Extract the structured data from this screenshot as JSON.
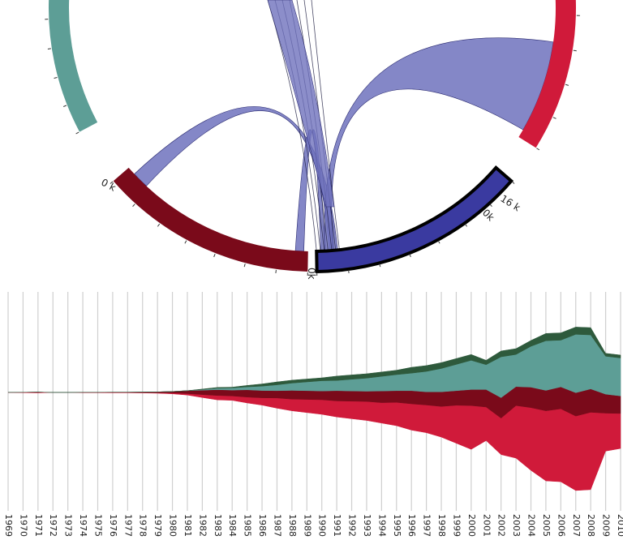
{
  "colors": {
    "teal": "#5d9e96",
    "dark_green": "#2e5a3c",
    "maroon": "#7a0a1a",
    "crimson": "#d01a3a",
    "navy": "#3a3aa0",
    "ribbon": "#6f72bd",
    "year_line": "#cfcfcf"
  },
  "chart_data": [
    {
      "type": "chord",
      "arc_labels": [
        {
          "text": "0 k",
          "arc": "teal"
        },
        {
          "text": "0k",
          "arc": "maroon"
        },
        {
          "text": "0k",
          "arc": "navy"
        },
        {
          "text": "16 k",
          "arc": "crimson"
        }
      ],
      "arcs": [
        {
          "color": "teal"
        },
        {
          "color": "maroon"
        },
        {
          "color": "navy",
          "highlighted": true
        },
        {
          "color": "crimson"
        }
      ]
    },
    {
      "type": "area",
      "x": [
        1969,
        1970,
        1971,
        1972,
        1973,
        1974,
        1975,
        1976,
        1977,
        1978,
        1979,
        1980,
        1981,
        1982,
        1983,
        1984,
        1985,
        1986,
        1987,
        1988,
        1989,
        1990,
        1991,
        1992,
        1993,
        1994,
        1995,
        1996,
        1997,
        1998,
        1999,
        2000,
        2001,
        2002,
        2003,
        2004,
        2005,
        2006,
        2007,
        2008,
        2009,
        2010
      ],
      "x_tick_labels": [
        "1969",
        "1970",
        "1971",
        "1972",
        "1973",
        "1974",
        "1975",
        "1976",
        "1977",
        "1978",
        "1979",
        "1980",
        "1981",
        "1982",
        "1983",
        "1984",
        "1985",
        "1986",
        "1987",
        "1988",
        "1989",
        "1990",
        "1991",
        "1992",
        "1993",
        "1994",
        "1995",
        "1996",
        "1997",
        "1998",
        "1999",
        "2000",
        "2001",
        "2002",
        "2003",
        "2004",
        "2005",
        "2006",
        "2007",
        "2008",
        "2009",
        "2010"
      ],
      "series": [
        {
          "color": "crimson",
          "values": [
            0.2,
            0.3,
            0.5,
            0.1,
            0.1,
            0.2,
            0.2,
            0.3,
            0.3,
            0.4,
            0.5,
            0.6,
            1,
            2,
            3,
            3,
            4,
            5,
            7,
            8,
            9,
            10,
            11,
            12,
            13,
            14,
            16,
            18,
            19,
            21,
            26,
            30,
            23,
            25,
            36,
            43,
            48,
            50,
            51,
            53,
            26,
            24
          ]
        },
        {
          "color": "maroon",
          "values": [
            0,
            0,
            0,
            0,
            0,
            0.1,
            0.1,
            0.1,
            0.1,
            0.2,
            0.4,
            1,
            2,
            3,
            4,
            4,
            5,
            5,
            5,
            6,
            6,
            6,
            7,
            7,
            7,
            8,
            8,
            9,
            9,
            10,
            10,
            11,
            12,
            14,
            13,
            14,
            14,
            15,
            16,
            16,
            13,
            12
          ]
        },
        {
          "color": "teal",
          "values": [
            0,
            0,
            0,
            0,
            0,
            0,
            0,
            0,
            0,
            0,
            0,
            0,
            0,
            0.5,
            1,
            1.5,
            2,
            3,
            4,
            5,
            6,
            7,
            7,
            8,
            9,
            10,
            11,
            12,
            14,
            16,
            18,
            20,
            17,
            28,
            22,
            28,
            34,
            32,
            40,
            37,
            26,
            26
          ]
        },
        {
          "color": "dark_green",
          "values": [
            0,
            0,
            0,
            0,
            0,
            0,
            0,
            0,
            0,
            0,
            0,
            0,
            0,
            0.3,
            0.5,
            0.5,
            1,
            1.5,
            2,
            2,
            2,
            2,
            3,
            3,
            3,
            3,
            3,
            4,
            4,
            4,
            4,
            4,
            3,
            4,
            4,
            4,
            5,
            5,
            5,
            5,
            2,
            2
          ]
        }
      ],
      "baseline": "wiggle-centered"
    }
  ]
}
